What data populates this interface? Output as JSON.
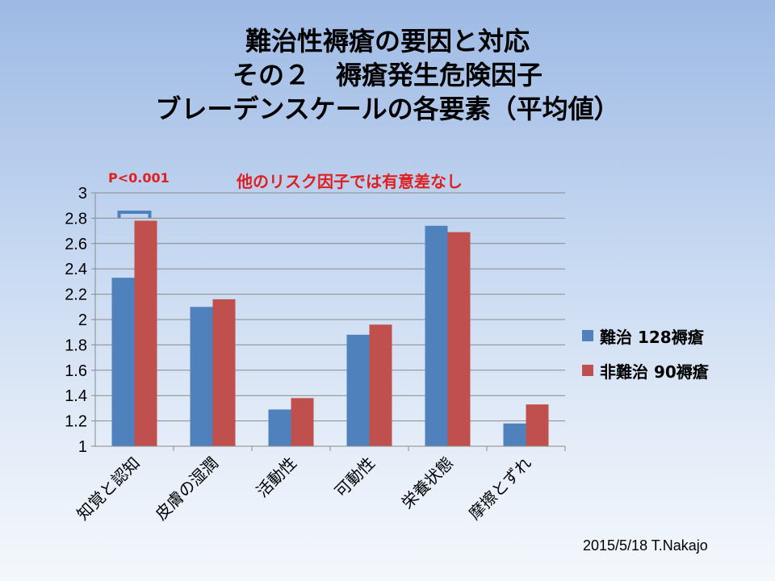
{
  "title_lines": [
    "難治性褥瘡の要因と対応",
    "その２　褥瘡発生危険因子",
    "ブレーデンスケールの各要素（平均値）"
  ],
  "chart_data": {
    "type": "bar",
    "categories": [
      "知覚と認知",
      "皮膚の湿潤",
      "活動性",
      "可動性",
      "栄養状態",
      "摩擦とずれ"
    ],
    "series": [
      {
        "name": "難治 128褥瘡",
        "color": "#4f81bd",
        "values": [
          2.33,
          2.1,
          1.29,
          1.88,
          2.74,
          1.18
        ]
      },
      {
        "name": "非難治 90褥瘡",
        "color": "#c0504d",
        "values": [
          2.78,
          2.16,
          1.38,
          1.96,
          2.69,
          1.33
        ]
      }
    ],
    "ylim": [
      1,
      3
    ],
    "yticks": [
      "1",
      "1.2",
      "1.4",
      "1.6",
      "1.8",
      "2",
      "2.2",
      "2.4",
      "2.6",
      "2.8",
      "3"
    ],
    "grid": true,
    "legend_position": "right",
    "annotations": {
      "pvalue": "P<0.001",
      "note": "他のリスク因子では有意差なし"
    }
  },
  "footer": "2015/5/18  T.Nakajo"
}
